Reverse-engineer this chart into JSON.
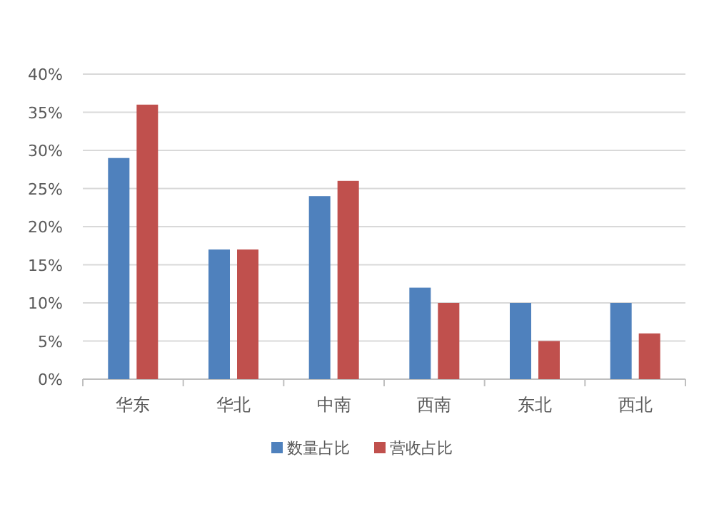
{
  "chart_data": {
    "type": "bar",
    "categories": [
      "华东",
      "华北",
      "中南",
      "西南",
      "东北",
      "西北"
    ],
    "series": [
      {
        "name": "数量占比",
        "color": "#4f81bd",
        "values": [
          29,
          17,
          24,
          12,
          10,
          10
        ]
      },
      {
        "name": "营收占比",
        "color": "#c0504d",
        "values": [
          36,
          17,
          26,
          10,
          5,
          6
        ]
      }
    ],
    "ylim": [
      0,
      40
    ],
    "yticks": [
      {
        "value": 0,
        "label": "0%"
      },
      {
        "value": 5,
        "label": "5%"
      },
      {
        "value": 10,
        "label": "10%"
      },
      {
        "value": 15,
        "label": "15%"
      },
      {
        "value": 20,
        "label": "20%"
      },
      {
        "value": 25,
        "label": "25%"
      },
      {
        "value": 30,
        "label": "30%"
      },
      {
        "value": 35,
        "label": "35%"
      },
      {
        "value": 40,
        "label": "40%"
      }
    ],
    "grid": "y",
    "legend": "bottom"
  }
}
